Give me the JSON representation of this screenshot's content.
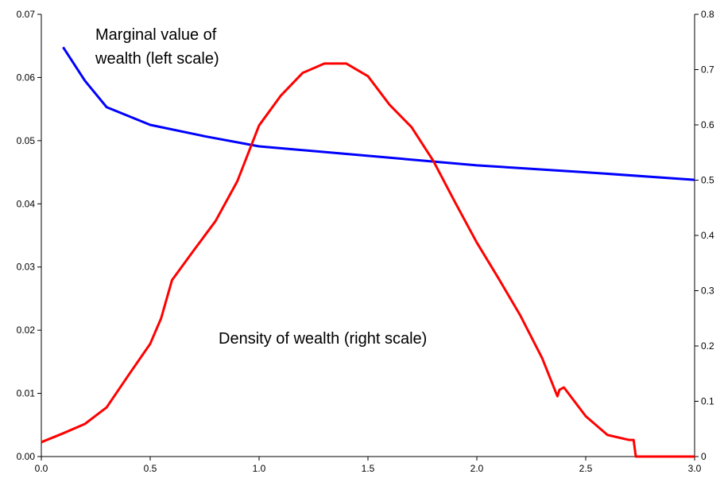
{
  "chart_data": {
    "type": "line",
    "annotations": [
      "Marginal value of",
      "wealth (left scale)",
      "Density of wealth (right scale)"
    ],
    "xlim": [
      0,
      3
    ],
    "xticks": [
      {
        "value": 0,
        "label": "0.0"
      },
      0.5,
      {
        "value": 1,
        "label": "1.0"
      },
      1.5,
      {
        "value": 2,
        "label": "2.0"
      },
      2.5,
      {
        "value": 3,
        "label": "3.0"
      }
    ],
    "ylim": [
      0,
      0.07
    ],
    "yticks": [
      {
        "value": 0,
        "label": "0.00"
      },
      0.01,
      0.02,
      0.03,
      0.04,
      0.05,
      0.06,
      0.07
    ],
    "y2lim": [
      0,
      0.8
    ],
    "y2ticks": [
      0,
      0.1,
      0.2,
      0.3,
      0.4,
      0.5,
      0.6,
      0.7,
      0.8
    ],
    "grid": false,
    "series": [
      {
        "name": "Marginal value of wealth",
        "color": "#0000ff",
        "axis": "y",
        "x": [
          0.1,
          0.2,
          0.3,
          0.5,
          0.75,
          1.0,
          1.5,
          2.0,
          2.5,
          3.0
        ],
        "values": [
          0.0648,
          0.0595,
          0.0553,
          0.0525,
          0.0507,
          0.0491,
          0.0476,
          0.0461,
          0.045,
          0.0438
        ]
      },
      {
        "name": "Density of wealth",
        "color": "#ff0000",
        "axis": "y2",
        "x": [
          0,
          0.1,
          0.2,
          0.3,
          0.4,
          0.5,
          0.55,
          0.6,
          0.7,
          0.8,
          0.9,
          1.0,
          1.1,
          1.2,
          1.3,
          1.4,
          1.5,
          1.6,
          1.7,
          1.8,
          1.9,
          2.0,
          2.1,
          2.2,
          2.3,
          2.37,
          2.38,
          2.4,
          2.5,
          2.6,
          2.7,
          2.72,
          2.73,
          3.0
        ],
        "values": [
          0.026,
          0.042,
          0.059,
          0.089,
          0.147,
          0.204,
          0.25,
          0.319,
          0.373,
          0.426,
          0.498,
          0.599,
          0.653,
          0.694,
          0.711,
          0.711,
          0.688,
          0.636,
          0.596,
          0.535,
          0.46,
          0.387,
          0.322,
          0.255,
          0.178,
          0.109,
          0.121,
          0.125,
          0.073,
          0.039,
          0.03,
          0.03,
          0,
          0
        ]
      }
    ]
  }
}
